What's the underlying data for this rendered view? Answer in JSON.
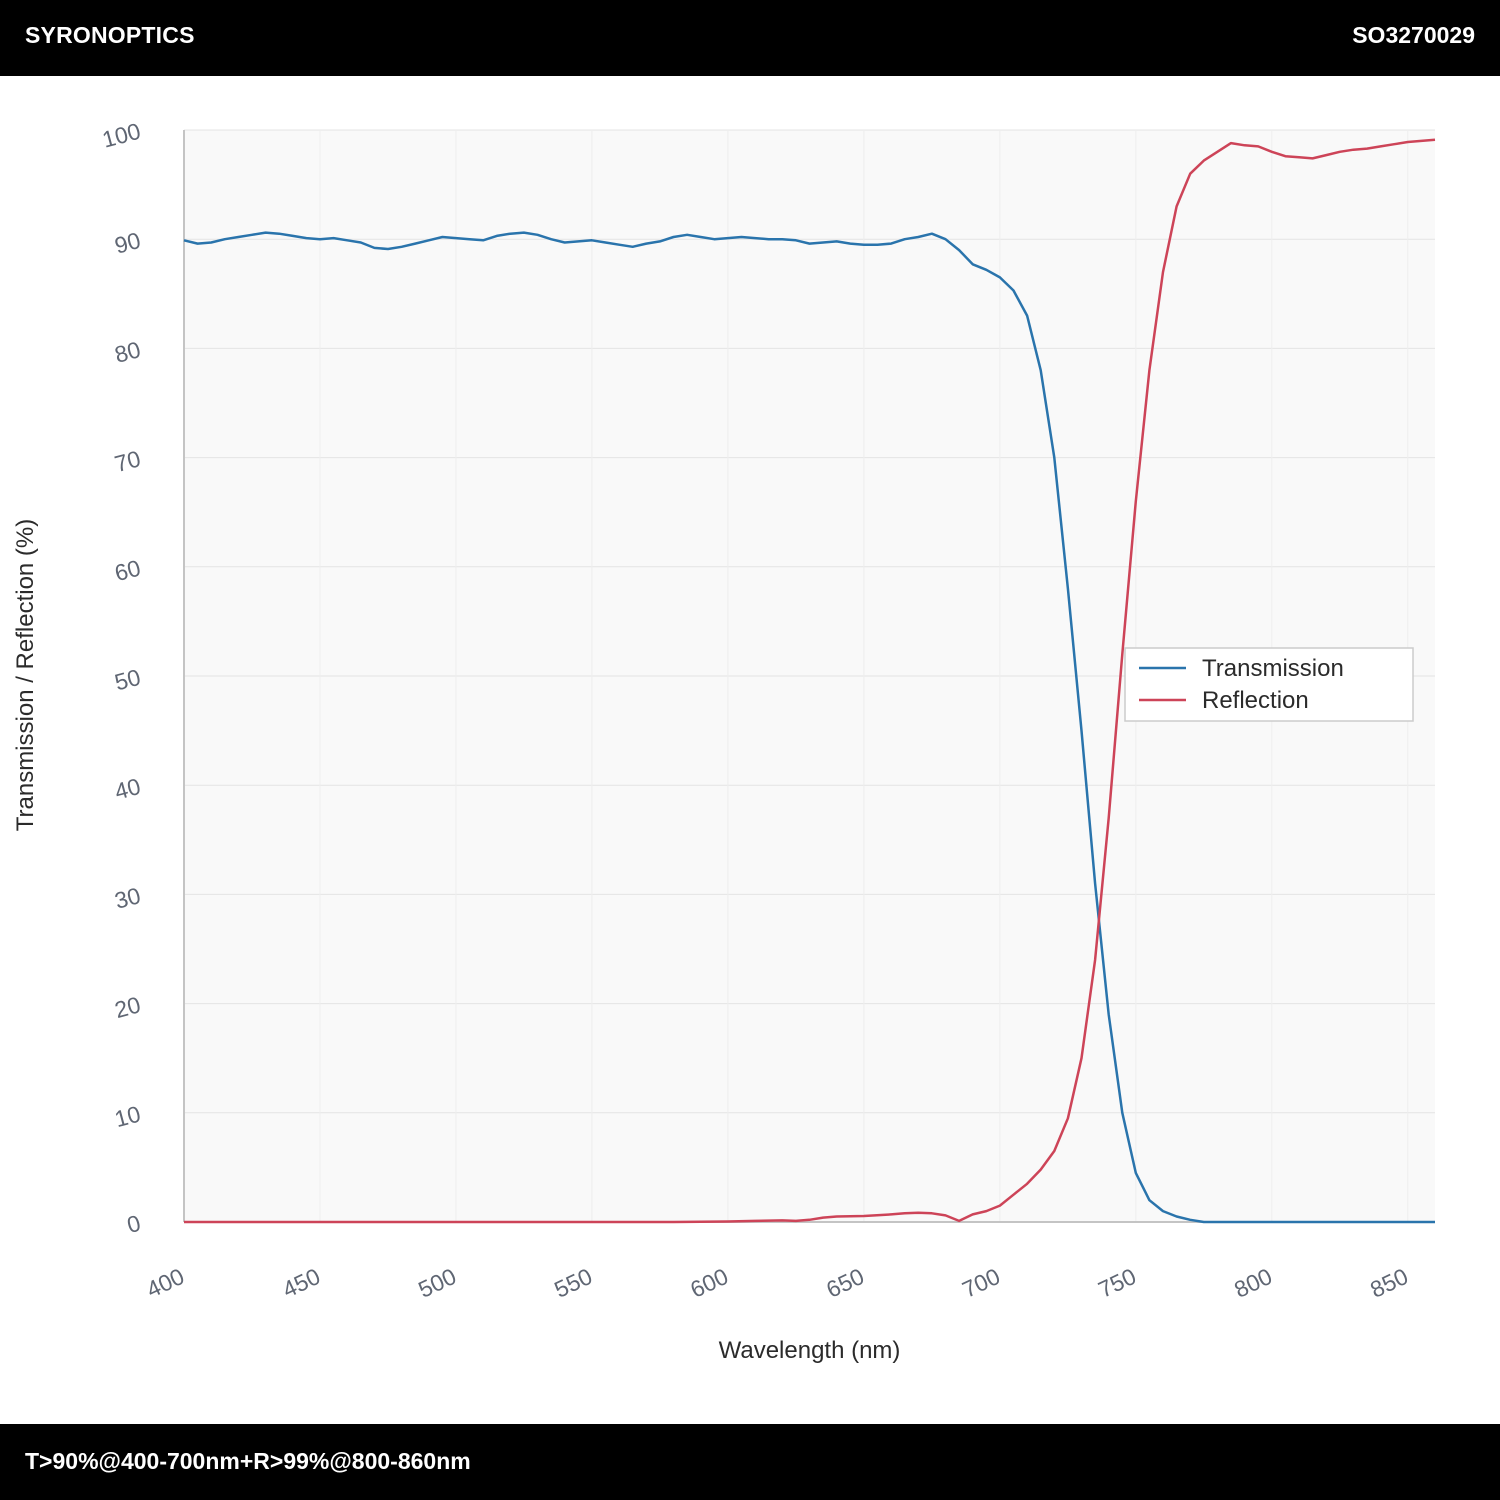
{
  "header": {
    "brand": "SYRONOPTICS",
    "part_number": "SO3270029"
  },
  "footer": {
    "spec": "T>90%@400-700nm+R>99%@800-860nm"
  },
  "colors": {
    "transmission": "#2a74ac",
    "reflection": "#cd4458",
    "plot_bg": "#f9f9f9",
    "grid": "#e4e4e4"
  },
  "chart_data": {
    "type": "line",
    "title": "",
    "xlabel": "Wavelength (nm)",
    "ylabel": "Transmission / Reflection (%)",
    "xlim": [
      400,
      860
    ],
    "ylim": [
      0,
      100
    ],
    "x_ticks": [
      400,
      450,
      500,
      550,
      600,
      650,
      700,
      750,
      800,
      850
    ],
    "y_ticks": [
      0,
      10,
      20,
      30,
      40,
      50,
      60,
      70,
      80,
      90,
      100
    ],
    "grid": true,
    "legend_position": "right-middle",
    "series": [
      {
        "name": "Transmission",
        "color": "#2a74ac",
        "x": [
          400,
          405,
          410,
          415,
          420,
          425,
          430,
          435,
          440,
          445,
          450,
          455,
          460,
          465,
          470,
          475,
          480,
          485,
          490,
          495,
          500,
          505,
          510,
          515,
          520,
          525,
          530,
          535,
          540,
          545,
          550,
          555,
          560,
          565,
          570,
          575,
          580,
          585,
          590,
          595,
          600,
          605,
          610,
          615,
          620,
          625,
          630,
          635,
          640,
          645,
          650,
          655,
          660,
          665,
          670,
          675,
          680,
          685,
          690,
          695,
          700,
          705,
          710,
          715,
          720,
          725,
          730,
          735,
          740,
          745,
          750,
          755,
          760,
          765,
          770,
          775,
          780,
          785,
          790,
          795,
          800,
          805,
          810,
          820,
          830,
          840,
          850,
          860
        ],
        "values": [
          89.9,
          89.6,
          89.7,
          90.0,
          90.2,
          90.4,
          90.6,
          90.5,
          90.3,
          90.1,
          90.0,
          90.1,
          89.9,
          89.7,
          89.2,
          89.1,
          89.3,
          89.6,
          89.9,
          90.2,
          90.1,
          90.0,
          89.9,
          90.3,
          90.5,
          90.6,
          90.4,
          90.0,
          89.7,
          89.8,
          89.9,
          89.7,
          89.5,
          89.3,
          89.6,
          89.8,
          90.2,
          90.4,
          90.2,
          90.0,
          90.1,
          90.2,
          90.1,
          90.0,
          90.0,
          89.9,
          89.6,
          89.7,
          89.8,
          89.6,
          89.5,
          89.5,
          89.6,
          90.0,
          90.2,
          90.5,
          90.0,
          89.0,
          87.7,
          87.2,
          86.5,
          85.3,
          83.0,
          78.0,
          70.0,
          58.0,
          45.0,
          31.0,
          19.0,
          10.0,
          4.5,
          2.0,
          1.0,
          0.5,
          0.2,
          0.0,
          0.0,
          0.0,
          0.0,
          0.0,
          0.0,
          0.0,
          0.0,
          0.0,
          0.0,
          0.0,
          0.0,
          0.0
        ]
      },
      {
        "name": "Reflection",
        "color": "#cd4458",
        "x": [
          400,
          450,
          500,
          550,
          580,
          600,
          610,
          620,
          625,
          630,
          635,
          640,
          650,
          660,
          665,
          670,
          675,
          680,
          685,
          690,
          695,
          700,
          705,
          710,
          715,
          720,
          725,
          730,
          735,
          740,
          745,
          750,
          755,
          760,
          765,
          770,
          775,
          780,
          785,
          790,
          795,
          800,
          805,
          810,
          815,
          820,
          825,
          830,
          835,
          840,
          845,
          850,
          855,
          860
        ],
        "values": [
          0,
          0,
          0,
          0,
          0,
          0.05,
          0.1,
          0.15,
          0.1,
          0.2,
          0.4,
          0.5,
          0.55,
          0.7,
          0.8,
          0.85,
          0.8,
          0.6,
          0.1,
          0.7,
          1.0,
          1.5,
          2.5,
          3.5,
          4.8,
          6.5,
          9.5,
          15.0,
          24.0,
          37.0,
          52.0,
          66.0,
          78.0,
          87.0,
          93.0,
          96.0,
          97.2,
          98.0,
          98.8,
          98.6,
          98.5,
          98.0,
          97.6,
          97.5,
          97.4,
          97.7,
          98.0,
          98.2,
          98.3,
          98.5,
          98.7,
          98.9,
          99.0,
          99.1
        ]
      }
    ]
  }
}
